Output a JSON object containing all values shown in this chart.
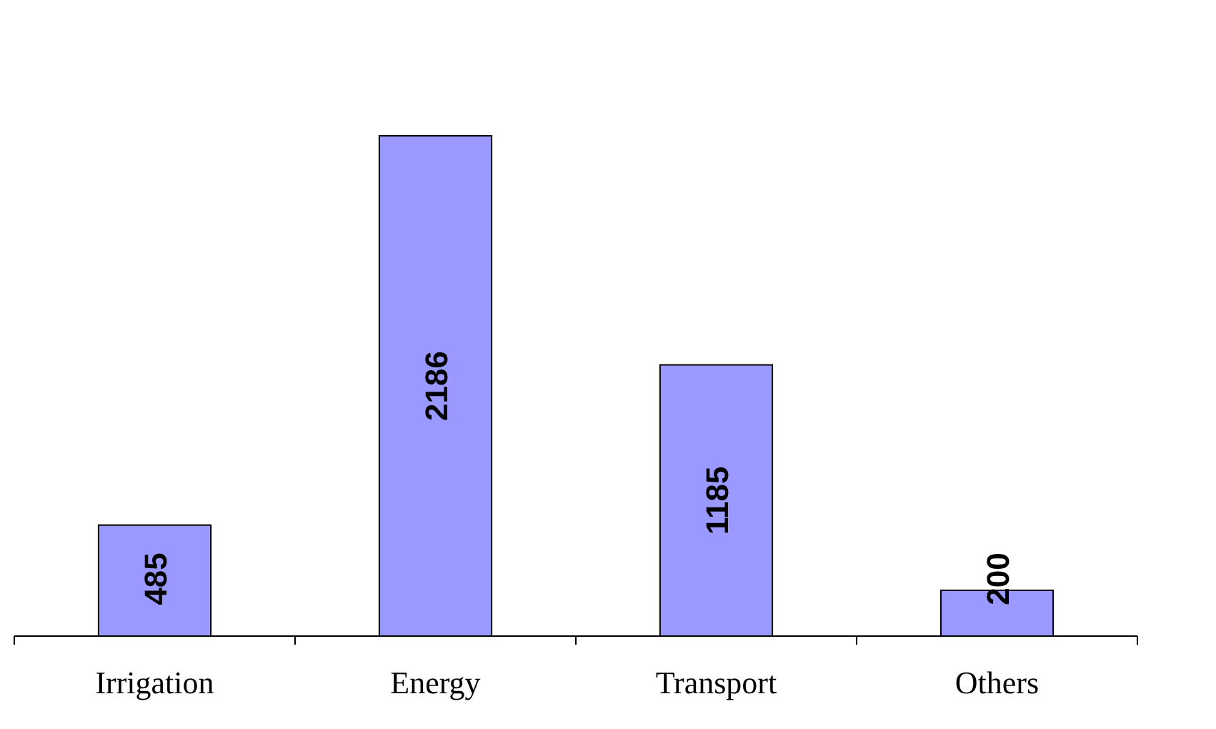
{
  "chart_data": {
    "type": "bar",
    "categories": [
      "Irrigation",
      "Energy",
      "Transport",
      "Others"
    ],
    "values": [
      485,
      2186,
      1185,
      200
    ],
    "color": "#9999ff",
    "data_labels": true
  }
}
